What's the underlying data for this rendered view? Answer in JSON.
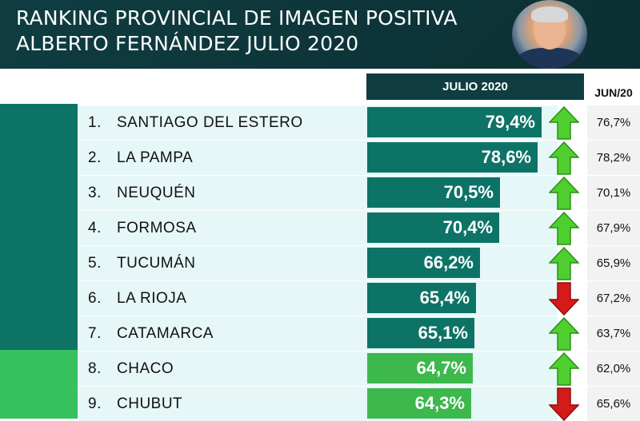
{
  "header": {
    "title_line1": "RANKING PROVINCIAL DE IMAGEN POSITIVA",
    "title_line2": "ALBERTO FERNÁNDEZ JULIO 2020"
  },
  "colors": {
    "header_bg": "#0f3d41",
    "teal": "#0d7367",
    "green": "#3cb84d",
    "arrow_up": "#4fcf2f",
    "arrow_down": "#d51a1a"
  },
  "chart_data": {
    "type": "bar",
    "orientation": "horizontal",
    "title": "RANKING PROVINCIAL DE IMAGEN POSITIVA ALBERTO FERNÁNDEZ JULIO 2020",
    "series": [
      {
        "name": "JULIO 2020",
        "values": [
          79.4,
          78.6,
          70.5,
          70.4,
          66.2,
          65.4,
          65.1,
          64.7,
          64.3
        ]
      },
      {
        "name": "JUN/20",
        "values": [
          76.7,
          78.2,
          70.1,
          67.9,
          65.9,
          67.2,
          63.7,
          62.0,
          65.6
        ]
      }
    ],
    "rows": [
      {
        "rank": "1.",
        "name": "SANTIAGO DEL ESTERO",
        "value": 79.4,
        "label": "79,4%",
        "prev_label": "76,7%",
        "trend": "up",
        "group": "teal"
      },
      {
        "rank": "2.",
        "name": "LA PAMPA",
        "value": 78.6,
        "label": "78,6%",
        "prev_label": "78,2%",
        "trend": "up",
        "group": "teal"
      },
      {
        "rank": "3.",
        "name": "NEUQUÉN",
        "value": 70.5,
        "label": "70,5%",
        "prev_label": "70,1%",
        "trend": "up",
        "group": "teal"
      },
      {
        "rank": "4.",
        "name": "FORMOSA",
        "value": 70.4,
        "label": "70,4%",
        "prev_label": "67,9%",
        "trend": "up",
        "group": "teal"
      },
      {
        "rank": "5.",
        "name": "TUCUMÁN",
        "value": 66.2,
        "label": "66,2%",
        "prev_label": "65,9%",
        "trend": "up",
        "group": "teal"
      },
      {
        "rank": "6.",
        "name": "LA RIOJA",
        "value": 65.4,
        "label": "65,4%",
        "prev_label": "67,2%",
        "trend": "down",
        "group": "teal"
      },
      {
        "rank": "7.",
        "name": "CATAMARCA",
        "value": 65.1,
        "label": "65,1%",
        "prev_label": "63,7%",
        "trend": "up",
        "group": "teal"
      },
      {
        "rank": "8.",
        "name": "CHACO",
        "value": 64.7,
        "label": "64,7%",
        "prev_label": "62,0%",
        "trend": "up",
        "group": "green"
      },
      {
        "rank": "9.",
        "name": "CHUBUT",
        "value": 64.3,
        "label": "64,3%",
        "prev_label": "65,6%",
        "trend": "down",
        "group": "green"
      }
    ],
    "columns": {
      "current": "JULIO 2020",
      "previous": "JUN/20"
    },
    "xlim": [
      0,
      100
    ],
    "grid": false,
    "legend": "none"
  }
}
